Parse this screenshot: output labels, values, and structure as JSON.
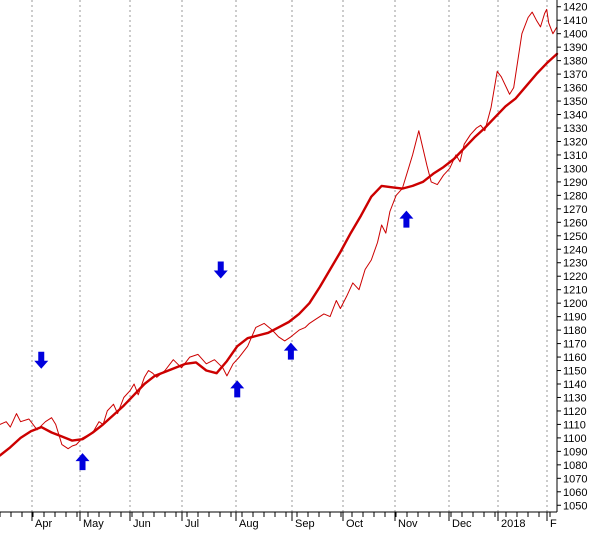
{
  "chart_data": {
    "type": "line",
    "title": "",
    "xlabel": "",
    "ylabel": "",
    "grid": true,
    "ylim": [
      1045,
      1425
    ],
    "y_ticks": [
      1050,
      1060,
      1070,
      1080,
      1090,
      1100,
      1110,
      1120,
      1130,
      1140,
      1150,
      1160,
      1170,
      1180,
      1190,
      1200,
      1210,
      1220,
      1230,
      1240,
      1250,
      1260,
      1270,
      1280,
      1290,
      1300,
      1310,
      1320,
      1330,
      1340,
      1350,
      1360,
      1370,
      1380,
      1390,
      1400,
      1410,
      1420
    ],
    "x_tick_labels": [
      "Apr",
      "May",
      "Jun",
      "Jul",
      "Aug",
      "Sep",
      "Oct",
      "Nov",
      "Dec",
      "2018",
      "F"
    ],
    "series": [
      {
        "name": "",
        "color": "#cc0000",
        "style": "thin",
        "x": [
          0,
          3,
          5,
          8,
          10,
          14,
          18,
          22,
          25,
          27,
          30,
          33,
          35,
          37,
          40,
          45,
          48,
          50,
          52,
          55,
          57,
          60,
          63,
          65,
          67,
          70,
          72,
          74,
          76,
          80,
          84,
          88,
          92,
          96,
          100,
          104,
          108,
          110,
          113,
          116,
          120,
          124,
          128,
          132,
          135,
          138,
          141,
          145,
          148,
          150,
          153,
          157,
          160,
          163,
          165,
          168,
          171,
          174,
          177,
          180,
          183,
          185,
          187,
          189,
          192,
          195,
          198,
          200,
          203,
          205,
          207,
          209,
          212,
          215,
          218,
          221,
          223,
          225,
          228,
          231,
          233,
          235,
          238,
          241,
          243,
          247,
          249,
          251,
          253,
          256,
          258,
          260,
          262,
          264,
          265,
          266,
          268,
          270
        ],
        "y": [
          1110,
          1112,
          1108,
          1118,
          1112,
          1114,
          1106,
          1112,
          1115,
          1110,
          1095,
          1092,
          1094,
          1095,
          1100,
          1104,
          1112,
          1110,
          1120,
          1125,
          1118,
          1130,
          1135,
          1140,
          1132,
          1145,
          1150,
          1148,
          1145,
          1150,
          1158,
          1152,
          1160,
          1162,
          1155,
          1158,
          1152,
          1146,
          1155,
          1160,
          1168,
          1182,
          1185,
          1180,
          1175,
          1172,
          1175,
          1180,
          1182,
          1185,
          1188,
          1192,
          1190,
          1202,
          1196,
          1205,
          1215,
          1210,
          1225,
          1232,
          1245,
          1258,
          1252,
          1268,
          1280,
          1285,
          1300,
          1310,
          1328,
          1315,
          1302,
          1290,
          1288,
          1295,
          1300,
          1310,
          1305,
          1318,
          1325,
          1330,
          1332,
          1328,
          1345,
          1372,
          1368,
          1355,
          1360,
          1380,
          1400,
          1412,
          1416,
          1410,
          1405,
          1415,
          1418,
          1408,
          1400,
          1405
        ]
      },
      {
        "name": "",
        "color": "#cc0000",
        "style": "thick",
        "x": [
          0,
          5,
          10,
          15,
          20,
          25,
          30,
          35,
          40,
          45,
          50,
          55,
          60,
          65,
          70,
          75,
          80,
          85,
          90,
          95,
          100,
          105,
          110,
          115,
          120,
          125,
          130,
          135,
          140,
          145,
          150,
          155,
          160,
          165,
          170,
          175,
          180,
          185,
          190,
          195,
          200,
          205,
          210,
          215,
          220,
          225,
          230,
          235,
          240,
          245,
          250,
          255,
          260,
          265,
          270
        ],
        "y": [
          1087,
          1093,
          1100,
          1105,
          1108,
          1104,
          1101,
          1098,
          1099,
          1104,
          1110,
          1117,
          1124,
          1132,
          1140,
          1146,
          1149,
          1152,
          1155,
          1156,
          1150,
          1148,
          1157,
          1168,
          1174,
          1176,
          1178,
          1182,
          1186,
          1192,
          1200,
          1212,
          1225,
          1238,
          1252,
          1265,
          1279,
          1287,
          1286,
          1285,
          1287,
          1290,
          1296,
          1301,
          1307,
          1315,
          1323,
          1330,
          1338,
          1346,
          1352,
          1361,
          1370,
          1378,
          1385
        ]
      }
    ],
    "annotations": [
      {
        "type": "arrow-down",
        "x": 20,
        "y": 1158
      },
      {
        "type": "arrow-up",
        "x": 40,
        "y": 1082
      },
      {
        "type": "arrow-down",
        "x": 107,
        "y": 1225
      },
      {
        "type": "arrow-up",
        "x": 115,
        "y": 1136
      },
      {
        "type": "arrow-up",
        "x": 141,
        "y": 1164
      },
      {
        "type": "arrow-up",
        "x": 197,
        "y": 1262
      }
    ]
  }
}
